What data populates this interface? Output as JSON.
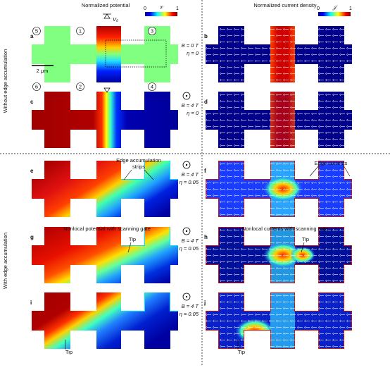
{
  "header": {
    "left_title": "Normalized potential",
    "right_title": "Normalized current density",
    "left_colorbar": {
      "min": "0",
      "symbol": "𝒱",
      "max": "1"
    },
    "right_colorbar": {
      "min": "0",
      "symbol": "𝒥",
      "max": "1"
    }
  },
  "row_labels": [
    "Without edge accumulation",
    "With edge accumulation"
  ],
  "left_panels": [
    {
      "letter": "a",
      "B": "B = 0 T",
      "eta": "η = 0"
    },
    {
      "letter": "c",
      "B": "B = 4 T",
      "eta": "η = 0"
    },
    {
      "letter": "e",
      "B": "B = 4 T",
      "eta": "η = 0.05"
    },
    {
      "letter": "g",
      "B": "B = 4 T",
      "eta": "η = 0.05"
    },
    {
      "letter": "i",
      "B": "B = 4 T",
      "eta": "η = 0.05"
    }
  ],
  "right_panels": [
    {
      "letter": "b"
    },
    {
      "letter": "d"
    },
    {
      "letter": "f"
    },
    {
      "letter": "h"
    },
    {
      "letter": "j"
    }
  ],
  "contacts": [
    "1",
    "2",
    "3",
    "4",
    "5",
    "6"
  ],
  "voltage_label": "V₀",
  "scale_bar": "2 μm",
  "annotations": {
    "edge_strips": [
      "Edge accumulation",
      "strips"
    ],
    "edge_currents": "Edge currents",
    "nonlocal_potential": "Nonlocal potential with scanning gate",
    "nonlocal_currents": "Nonlocal currents with scanning gate",
    "tip": [
      "Tip",
      "Tip",
      "Tip",
      "Tip"
    ]
  }
}
